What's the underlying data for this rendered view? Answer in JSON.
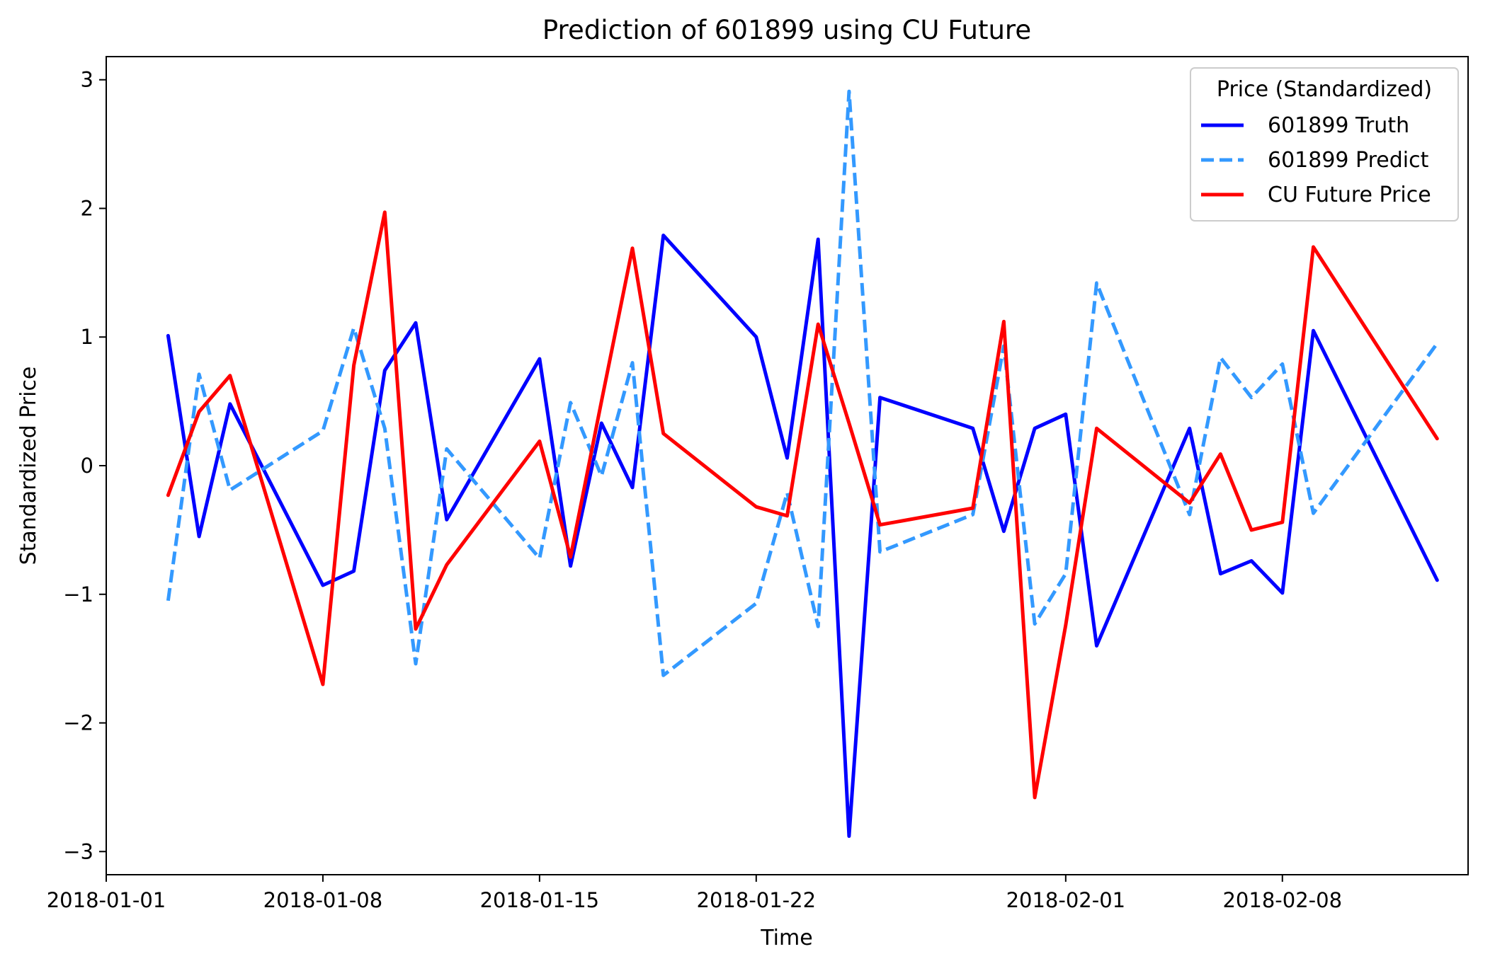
{
  "chart_data": {
    "type": "line",
    "title": "Prediction of 601899 using CU Future",
    "xlabel": "Time",
    "ylabel": "Standardized Price",
    "xlim": [
      "2018-01-01",
      "2018-02-14"
    ],
    "ylim": [
      -3.18,
      3.18
    ],
    "xticks": [
      "2018-01-01",
      "2018-01-08",
      "2018-01-15",
      "2018-01-22",
      "2018-02-01",
      "2018-02-08"
    ],
    "yticks": [
      3,
      2,
      1,
      0,
      -1,
      -2,
      -3
    ],
    "ytick_labels": [
      "3",
      "2",
      "1",
      "0",
      "−1",
      "−2",
      "−3"
    ],
    "grid": false,
    "legend": {
      "title": "Price (Standardized)",
      "position": "top-right"
    },
    "x": [
      "2018-01-03",
      "2018-01-04",
      "2018-01-05",
      "2018-01-08",
      "2018-01-09",
      "2018-01-10",
      "2018-01-11",
      "2018-01-12",
      "2018-01-15",
      "2018-01-16",
      "2018-01-17",
      "2018-01-18",
      "2018-01-19",
      "2018-01-22",
      "2018-01-23",
      "2018-01-24",
      "2018-01-25",
      "2018-01-26",
      "2018-01-29",
      "2018-01-30",
      "2018-01-31",
      "2018-02-01",
      "2018-02-02",
      "2018-02-05",
      "2018-02-06",
      "2018-02-07",
      "2018-02-08",
      "2018-02-09",
      "2018-02-13"
    ],
    "series": [
      {
        "name": "601899 Truth",
        "color": "#0000ff",
        "dash": "solid",
        "values": [
          1.01,
          -0.55,
          0.48,
          -0.93,
          -0.82,
          0.74,
          1.11,
          -0.42,
          0.83,
          -0.78,
          0.33,
          -0.17,
          1.79,
          1.0,
          0.06,
          1.76,
          -2.88,
          0.53,
          0.29,
          -0.51,
          0.29,
          0.4,
          -1.4,
          0.29,
          -0.84,
          -0.74,
          -0.99,
          1.05,
          -0.89
        ]
      },
      {
        "name": "601899 Predict",
        "color": "#3399ff",
        "dash": "dashed",
        "values": [
          -1.05,
          0.71,
          -0.19,
          0.27,
          1.07,
          0.29,
          -1.54,
          0.13,
          -0.72,
          0.49,
          -0.08,
          0.8,
          -1.63,
          -1.07,
          -0.21,
          -1.25,
          2.91,
          -0.67,
          -0.38,
          0.93,
          -1.23,
          -0.84,
          1.42,
          -0.38,
          0.84,
          0.53,
          0.79,
          -0.37,
          0.95
        ]
      },
      {
        "name": "CU Future Price",
        "color": "#ff0000",
        "dash": "solid",
        "values": [
          -0.23,
          0.42,
          0.7,
          -1.7,
          0.78,
          1.97,
          -1.27,
          -0.77,
          0.19,
          -0.71,
          0.5,
          1.69,
          0.25,
          -0.32,
          -0.39,
          1.1,
          0.33,
          -0.46,
          -0.33,
          1.12,
          -2.58,
          -1.24,
          0.29,
          -0.29,
          0.09,
          -0.5,
          -0.44,
          1.7,
          0.21
        ]
      }
    ]
  }
}
